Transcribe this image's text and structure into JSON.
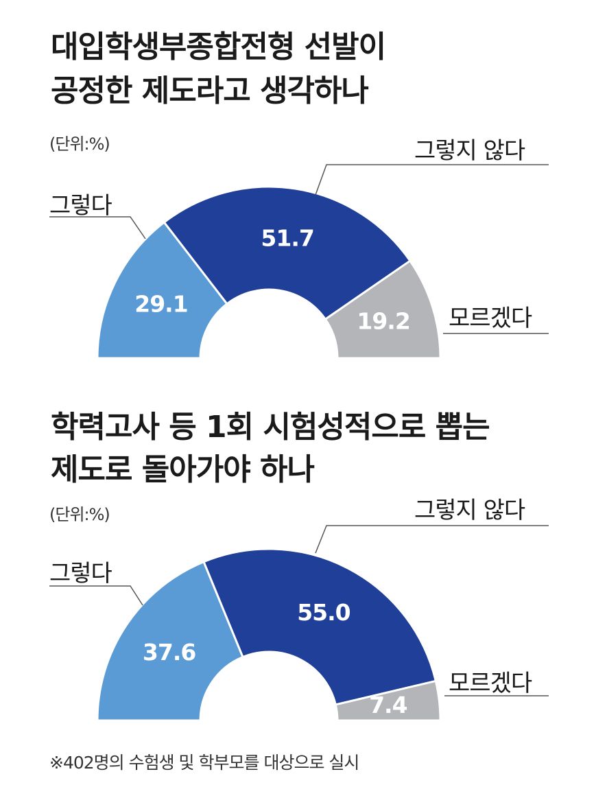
{
  "charts": [
    {
      "title_line1": "대입학생부종합전형 선발이",
      "title_line2": "공정한 제도라고 생각하나",
      "unit": "(단위:%)"
    },
    {
      "title_line1": "학력고사 등 1회 시험성적으로 뽑는",
      "title_line2": "제도로 돌아가야 하나",
      "unit": "(단위:%)"
    }
  ],
  "footnote": "※402명의 수험생 및 학부모를 대상으로 실시",
  "colors": {
    "yes": "#5b9bd5",
    "no": "#1f3f99",
    "unknown": "#b3b5b8",
    "leader": "#555555"
  },
  "chart_data": [
    {
      "type": "pie",
      "subtype": "half-donut",
      "title": "대입학생부종합전형 선발이 공정한 제도라고 생각하나",
      "unit": "(단위:%)",
      "categories": [
        "그렇다",
        "그렇지 않다",
        "모르겠다"
      ],
      "values": [
        29.1,
        51.7,
        19.2
      ],
      "value_labels": [
        "29.1",
        "51.7",
        "19.2"
      ]
    },
    {
      "type": "pie",
      "subtype": "half-donut",
      "title": "학력고사 등 1회 시험성적으로 뽑는 제도로 돌아가야 하나",
      "unit": "(단위:%)",
      "categories": [
        "그렇다",
        "그렇지 않다",
        "모르겠다"
      ],
      "values": [
        37.6,
        55.0,
        7.4
      ],
      "value_labels": [
        "37.6",
        "55.0",
        "7.4"
      ]
    }
  ]
}
